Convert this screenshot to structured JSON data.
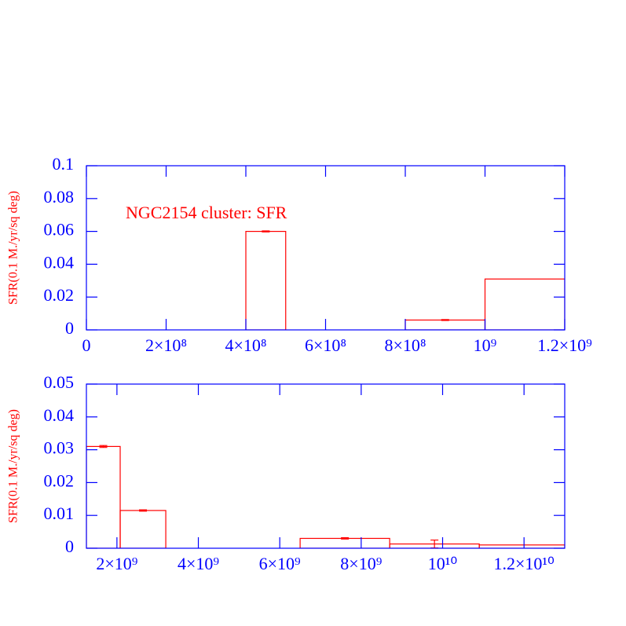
{
  "chart_data": [
    {
      "type": "histogram",
      "annotation": "NGC2154 cluster: SFR",
      "ylabel": "SFR(0.1 M./yr/sq deg)",
      "bins": [
        0,
        250000000,
        400000000,
        500000000,
        630000000,
        800000000,
        1000000000,
        1200000000
      ],
      "values": [
        0,
        0,
        0.06,
        0,
        0,
        0.006,
        0.031
      ],
      "errors": [
        0,
        0,
        0.0003,
        0,
        0,
        0.0003,
        0
      ],
      "color": "#ff0000",
      "axis_color": "#0000ff",
      "xlim": [
        0,
        1200000000
      ],
      "xticks": [
        0,
        {
          "value": 200000000,
          "label": "2×10⁸"
        },
        {
          "value": 400000000,
          "label": "4×10⁸"
        },
        {
          "value": 600000000,
          "label": "6×10⁸"
        },
        {
          "value": 800000000,
          "label": "8×10⁸"
        },
        {
          "value": 1000000000,
          "label": "10⁹"
        },
        {
          "value": 1200000000,
          "label": "1.2×10⁹"
        }
      ],
      "ylim": [
        0,
        0.1
      ],
      "yticks": [
        0,
        0.02,
        0.04,
        0.06,
        0.08,
        0.1
      ]
    },
    {
      "type": "histogram",
      "ylabel": "SFR(0.1 M./yr/sq deg)",
      "bins": [
        1250000000,
        2080000000,
        3200000000,
        6500000000,
        8700000000,
        10900000000,
        13000000000
      ],
      "values": [
        0.031,
        0.0115,
        0,
        0.003,
        0.0013,
        0.001
      ],
      "errors": [
        0.0003,
        0.0002,
        0,
        0.0002,
        0.0012,
        0
      ],
      "color": "#ff0000",
      "axis_color": "#0000ff",
      "xlim": [
        1250000000,
        13000000000
      ],
      "xticks": [
        {
          "value": 2000000000,
          "label": "2×10⁹"
        },
        {
          "value": 4000000000,
          "label": "4×10⁹"
        },
        {
          "value": 6000000000,
          "label": "6×10⁹"
        },
        {
          "value": 8000000000,
          "label": "8×10⁹"
        },
        {
          "value": 10000000000,
          "label": "10¹⁰"
        },
        {
          "value": 12000000000,
          "label": "1.2×10¹⁰"
        }
      ],
      "ylim": [
        0,
        0.05
      ],
      "yticks": [
        0,
        0.01,
        0.02,
        0.03,
        0.04,
        0.05
      ]
    }
  ]
}
